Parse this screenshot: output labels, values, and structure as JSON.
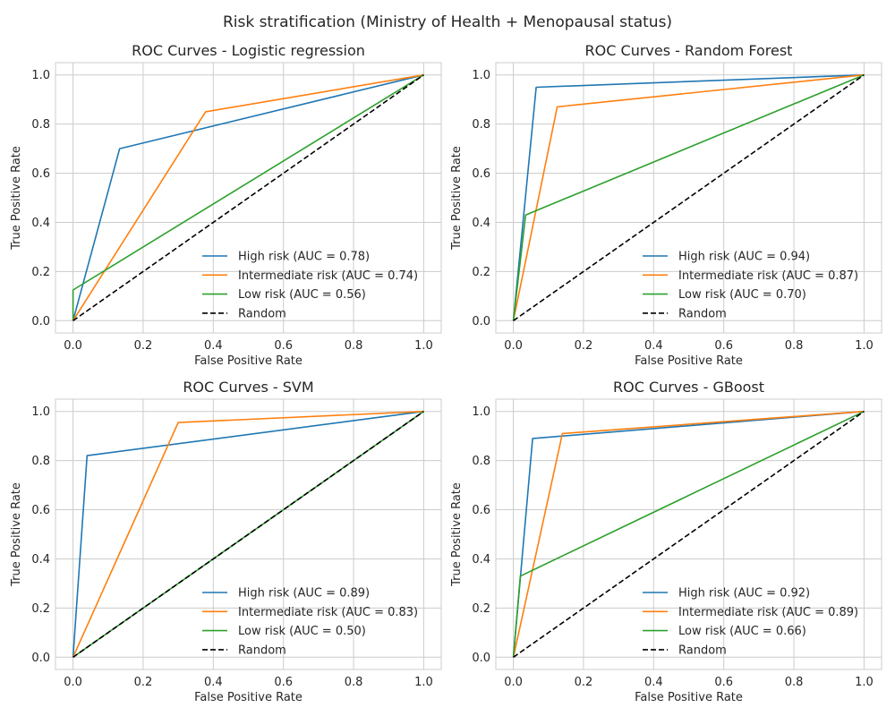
{
  "figure_title": "Risk stratification (Ministry of Health + Menopausal status)",
  "chart_data": [
    {
      "type": "line",
      "title": "ROC Curves - Logistic regression",
      "xlabel": "False Positive Rate",
      "ylabel": "True Positive Rate",
      "xlim": [
        -0.05,
        1.05
      ],
      "ylim": [
        -0.05,
        1.05
      ],
      "xticks": [
        "0.0",
        "0.2",
        "0.4",
        "0.6",
        "0.8",
        "1.0"
      ],
      "yticks": [
        "0.0",
        "0.2",
        "0.4",
        "0.6",
        "0.8",
        "1.0"
      ],
      "grid": true,
      "legend_position": "lower right",
      "series": [
        {
          "name": "High risk (AUC = 0.78)",
          "color": "#1f77b4",
          "dash": "solid",
          "x": [
            0.0,
            0.133,
            1.0
          ],
          "y": [
            0.0,
            0.7,
            1.0
          ]
        },
        {
          "name": "Intermediate risk (AUC = 0.74)",
          "color": "#ff7f0e",
          "dash": "solid",
          "x": [
            0.0,
            0.378,
            1.0
          ],
          "y": [
            0.0,
            0.85,
            1.0
          ]
        },
        {
          "name": "Low risk (AUC = 0.56)",
          "color": "#2ca02c",
          "dash": "solid",
          "x": [
            0.0,
            0.0,
            1.0
          ],
          "y": [
            0.0,
            0.125,
            1.0
          ]
        },
        {
          "name": "Random",
          "color": "#000000",
          "dash": "dashed",
          "x": [
            0.0,
            1.0
          ],
          "y": [
            0.0,
            1.0
          ]
        }
      ]
    },
    {
      "type": "line",
      "title": "ROC Curves - Random Forest",
      "xlabel": "False Positive Rate",
      "ylabel": "True Positive Rate",
      "xlim": [
        -0.05,
        1.05
      ],
      "ylim": [
        -0.05,
        1.05
      ],
      "xticks": [
        "0.0",
        "0.2",
        "0.4",
        "0.6",
        "0.8",
        "1.0"
      ],
      "yticks": [
        "0.0",
        "0.2",
        "0.4",
        "0.6",
        "0.8",
        "1.0"
      ],
      "grid": true,
      "legend_position": "lower right",
      "series": [
        {
          "name": "High risk (AUC = 0.94)",
          "color": "#1f77b4",
          "dash": "solid",
          "x": [
            0.0,
            0.065,
            1.0
          ],
          "y": [
            0.0,
            0.95,
            1.0
          ]
        },
        {
          "name": "Intermediate risk (AUC = 0.87)",
          "color": "#ff7f0e",
          "dash": "solid",
          "x": [
            0.0,
            0.125,
            1.0
          ],
          "y": [
            0.0,
            0.87,
            1.0
          ]
        },
        {
          "name": "Low risk (AUC = 0.70)",
          "color": "#2ca02c",
          "dash": "solid",
          "x": [
            0.0,
            0.035,
            1.0
          ],
          "y": [
            0.0,
            0.43,
            1.0
          ]
        },
        {
          "name": "Random",
          "color": "#000000",
          "dash": "dashed",
          "x": [
            0.0,
            1.0
          ],
          "y": [
            0.0,
            1.0
          ]
        }
      ]
    },
    {
      "type": "line",
      "title": "ROC Curves - SVM",
      "xlabel": "False Positive Rate",
      "ylabel": "True Positive Rate",
      "xlim": [
        -0.05,
        1.05
      ],
      "ylim": [
        -0.05,
        1.05
      ],
      "xticks": [
        "0.0",
        "0.2",
        "0.4",
        "0.6",
        "0.8",
        "1.0"
      ],
      "yticks": [
        "0.0",
        "0.2",
        "0.4",
        "0.6",
        "0.8",
        "1.0"
      ],
      "grid": true,
      "legend_position": "lower right",
      "series": [
        {
          "name": "High risk (AUC = 0.89)",
          "color": "#1f77b4",
          "dash": "solid",
          "x": [
            0.0,
            0.04,
            1.0
          ],
          "y": [
            0.0,
            0.82,
            1.0
          ]
        },
        {
          "name": "Intermediate risk (AUC = 0.83)",
          "color": "#ff7f0e",
          "dash": "solid",
          "x": [
            0.0,
            0.3,
            1.0
          ],
          "y": [
            0.0,
            0.955,
            1.0
          ]
        },
        {
          "name": "Low risk (AUC = 0.50)",
          "color": "#2ca02c",
          "dash": "solid",
          "x": [
            0.0,
            1.0
          ],
          "y": [
            0.0,
            1.0
          ]
        },
        {
          "name": "Random",
          "color": "#000000",
          "dash": "dashed",
          "x": [
            0.0,
            1.0
          ],
          "y": [
            0.0,
            1.0
          ]
        }
      ]
    },
    {
      "type": "line",
      "title": "ROC Curves - GBoost",
      "xlabel": "False Positive Rate",
      "ylabel": "True Positive Rate",
      "xlim": [
        -0.05,
        1.05
      ],
      "ylim": [
        -0.05,
        1.05
      ],
      "xticks": [
        "0.0",
        "0.2",
        "0.4",
        "0.6",
        "0.8",
        "1.0"
      ],
      "yticks": [
        "0.0",
        "0.2",
        "0.4",
        "0.6",
        "0.8",
        "1.0"
      ],
      "grid": true,
      "legend_position": "lower right",
      "series": [
        {
          "name": "High risk (AUC = 0.92)",
          "color": "#1f77b4",
          "dash": "solid",
          "x": [
            0.0,
            0.055,
            1.0
          ],
          "y": [
            0.0,
            0.89,
            1.0
          ]
        },
        {
          "name": "Intermediate risk (AUC = 0.89)",
          "color": "#ff7f0e",
          "dash": "solid",
          "x": [
            0.0,
            0.14,
            1.0
          ],
          "y": [
            0.0,
            0.91,
            1.0
          ]
        },
        {
          "name": "Low risk (AUC = 0.66)",
          "color": "#2ca02c",
          "dash": "solid",
          "x": [
            0.0,
            0.02,
            1.0
          ],
          "y": [
            0.0,
            0.33,
            1.0
          ]
        },
        {
          "name": "Random",
          "color": "#000000",
          "dash": "dashed",
          "x": [
            0.0,
            1.0
          ],
          "y": [
            0.0,
            1.0
          ]
        }
      ]
    }
  ]
}
